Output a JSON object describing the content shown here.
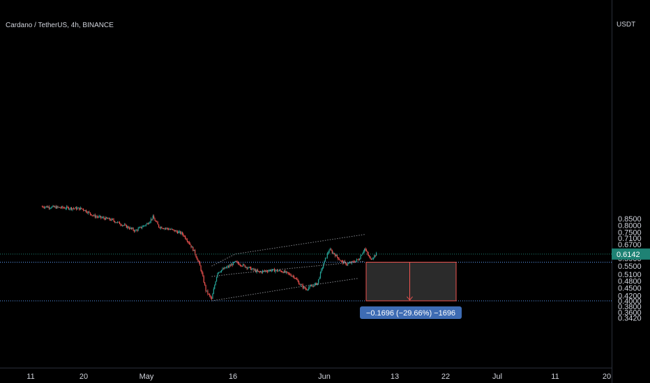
{
  "chart_data": {
    "type": "candlestick",
    "title": "Cardano / TetherUS, 4h, BINANCE",
    "currency": "USDT",
    "scale": "log",
    "ylim": [
      0.33,
      0.92
    ],
    "y_ticks": [
      "0.8500",
      "0.8000",
      "0.7500",
      "0.7100",
      "0.6700",
      "0.6300",
      "0.5900",
      "0.5500",
      "0.5100",
      "0.4800",
      "0.4500",
      "0.4200",
      "0.4000",
      "0.3800",
      "0.3600",
      "0.3420"
    ],
    "x_ticks": [
      "11",
      "20",
      "May",
      "16",
      "Jun",
      "13",
      "22",
      "Jul",
      "11",
      "20"
    ],
    "last_price": "0.6142",
    "series_path": [
      [
        "Apr 13",
        0.95
      ],
      [
        "Apr 20",
        0.93
      ],
      [
        "Apr 22",
        0.87
      ],
      [
        "Apr 25",
        0.84
      ],
      [
        "Apr 27",
        0.8
      ],
      [
        "Apr 29",
        0.76
      ],
      [
        "May 1",
        0.81
      ],
      [
        "May 2",
        0.86
      ],
      [
        "May 3",
        0.79
      ],
      [
        "May 5",
        0.77
      ],
      [
        "May 7",
        0.74
      ],
      [
        "May 8",
        0.69
      ],
      [
        "May 9",
        0.63
      ],
      [
        "May 10",
        0.55
      ],
      [
        "May 11",
        0.44
      ],
      [
        "May 12",
        0.405
      ],
      [
        "May 13",
        0.52
      ],
      [
        "May 15",
        0.55
      ],
      [
        "May 16",
        0.57
      ],
      [
        "May 18",
        0.545
      ],
      [
        "May 20",
        0.52
      ],
      [
        "May 22",
        0.53
      ],
      [
        "May 24",
        0.525
      ],
      [
        "May 26",
        0.5
      ],
      [
        "May 27",
        0.465
      ],
      [
        "May 28",
        0.445
      ],
      [
        "May 30",
        0.47
      ],
      [
        "May 31",
        0.56
      ],
      [
        "Jun 1",
        0.64
      ],
      [
        "Jun 2",
        0.61
      ],
      [
        "Jun 3",
        0.575
      ],
      [
        "Jun 4",
        0.56
      ],
      [
        "Jun 5",
        0.57
      ],
      [
        "Jun 6",
        0.585
      ],
      [
        "Jun 7",
        0.645
      ],
      [
        "Jun 8",
        0.585
      ],
      [
        "Jun 9",
        0.6142
      ]
    ],
    "channel_lines": [
      [
        [
          "May 12",
          0.55
        ],
        [
          "May 16",
          0.6142
        ],
        [
          "Jun 7",
          0.735
        ]
      ],
      [
        [
          "May 12",
          0.5
        ],
        [
          "May 16",
          0.513
        ],
        [
          "Jun 7",
          0.575
        ]
      ],
      [
        [
          "May 12",
          0.4
        ],
        [
          "May 27",
          0.455
        ],
        [
          "Jun 6",
          0.492
        ]
      ]
    ],
    "measure": {
      "from": 0.57,
      "to": 0.4,
      "label": "−0.1696 (−29.66%) −1696"
    },
    "colors": {
      "up": "#26a69a",
      "down": "#ef5350",
      "background": "#000000",
      "text": "#d1d4dc",
      "price_badge": "#1e8274",
      "measure_label": "#3e6cb4"
    }
  }
}
